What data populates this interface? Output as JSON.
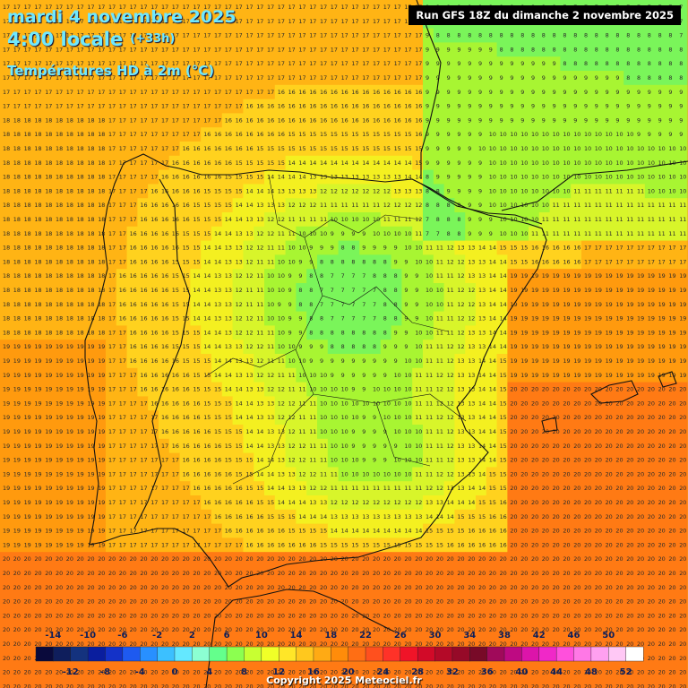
{
  "header": {
    "date_label": "mardi 4 novembre 2025",
    "time_label": "4:00 locale",
    "lead_label": "(+33h)",
    "parameter_label": "Températures HD à 2m (°C)"
  },
  "run_info": "Run GFS 18Z du dimanche 2 novembre 2025",
  "legend": {
    "top_labels": [
      "-14",
      "-10",
      "-6",
      "-2",
      "2",
      "6",
      "10",
      "14",
      "18",
      "22",
      "26",
      "30",
      "34",
      "38",
      "42",
      "46",
      "50"
    ],
    "bottom_labels": [
      "-12",
      "-8",
      "-4",
      "0",
      "4",
      "8",
      "12",
      "16",
      "20",
      "24",
      "28",
      "32",
      "36",
      "40",
      "44",
      "48",
      "52"
    ],
    "colors": [
      "#0a0a3c",
      "#0f1e5c",
      "#14327e",
      "#0a1e9e",
      "#1432c8",
      "#1e5af0",
      "#2890ff",
      "#3cc0ff",
      "#64e8ff",
      "#8cffd2",
      "#64ff8c",
      "#8cff50",
      "#c8ff32",
      "#f0ff28",
      "#ffe628",
      "#ffc81e",
      "#ffaa14",
      "#ff8c0a",
      "#ff6e14",
      "#ff501e",
      "#ff3228",
      "#f01428",
      "#d20a28",
      "#b40a28",
      "#960a28",
      "#780a28",
      "#a00a5a",
      "#be0a82",
      "#dc14aa",
      "#f028c8",
      "#ff50dc",
      "#ff78e6",
      "#ffa0f0",
      "#ffc8f5",
      "#ffffff"
    ]
  },
  "copyright": "Copyright 2025 Meteociel.fr"
}
